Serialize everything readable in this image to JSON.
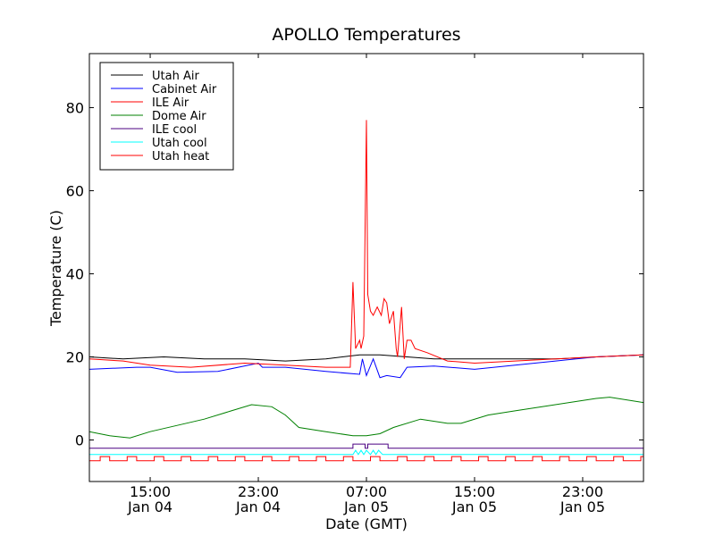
{
  "chart_data": {
    "type": "line",
    "title": "APOLLO Temperatures",
    "xlabel": "Date (GMT)",
    "ylabel": "Temperature (C)",
    "xlim_hours": [
      10.5,
      51.5
    ],
    "ylim": [
      -10,
      93
    ],
    "x_ticks": [
      {
        "h": 15,
        "line1": "15:00",
        "line2": "Jan 04"
      },
      {
        "h": 23,
        "line1": "23:00",
        "line2": "Jan 04"
      },
      {
        "h": 31,
        "line1": "07:00",
        "line2": "Jan 05"
      },
      {
        "h": 39,
        "line1": "15:00",
        "line2": "Jan 05"
      },
      {
        "h": 47,
        "line1": "23:00",
        "line2": "Jan 05"
      }
    ],
    "y_ticks": [
      0,
      20,
      40,
      60,
      80
    ],
    "legend": [
      {
        "name": "Utah Air",
        "color": "#000000"
      },
      {
        "name": "Cabinet Air",
        "color": "#0000ff"
      },
      {
        "name": "ILE Air",
        "color": "#ff0000"
      },
      {
        "name": "Dome Air",
        "color": "#008000"
      },
      {
        "name": "ILE cool",
        "color": "#4b0082"
      },
      {
        "name": "Utah cool",
        "color": "#00ffff"
      },
      {
        "name": "Utah heat",
        "color": "#ff0000"
      }
    ],
    "series": [
      {
        "name": "Utah Air",
        "color": "#000000",
        "x": [
          10.5,
          13,
          16,
          19,
          22,
          25,
          28,
          30.5,
          31,
          32,
          34,
          36,
          39,
          42,
          45,
          48,
          51.5
        ],
        "y": [
          20,
          19.5,
          20,
          19.5,
          19.5,
          19,
          19.5,
          20.5,
          20.5,
          20.5,
          20,
          19.5,
          19.5,
          19.5,
          19.5,
          20,
          20.5
        ]
      },
      {
        "name": "Cabinet Air",
        "color": "#0000ff",
        "x": [
          10.5,
          14,
          15,
          17,
          20,
          23,
          23.3,
          25,
          28,
          30.5,
          30.7,
          31,
          31.5,
          32,
          32.5,
          33.5,
          34,
          36,
          39,
          42,
          45,
          48,
          51.5
        ],
        "y": [
          17,
          17.5,
          17.5,
          16.3,
          16.5,
          18.5,
          17.5,
          17.5,
          16.5,
          15.8,
          19.5,
          15.5,
          19.5,
          15,
          15.5,
          15,
          17.5,
          17.8,
          17,
          18,
          19,
          20,
          20.5
        ]
      },
      {
        "name": "ILE Air",
        "color": "#ff0000",
        "x": [
          10.5,
          13,
          15,
          18,
          22,
          25,
          28,
          29.8,
          30,
          30.2,
          30.5,
          30.6,
          30.8,
          31,
          31.1,
          31.3,
          31.5,
          31.8,
          32.1,
          32.3,
          32.5,
          32.7,
          33,
          33.2,
          33.3,
          33.6,
          33.8,
          34,
          34.3,
          34.6,
          35.5,
          37,
          39,
          42,
          45,
          48,
          51.5
        ],
        "y": [
          19.5,
          19,
          18,
          17.5,
          18.5,
          18,
          17.5,
          17.5,
          38,
          22,
          24,
          22,
          25,
          77,
          35,
          31,
          30,
          32,
          30,
          34,
          33,
          28,
          31,
          22,
          20,
          32,
          19.5,
          24,
          24,
          22,
          21,
          19,
          18.5,
          19,
          19.5,
          20,
          20.5
        ]
      },
      {
        "name": "Dome Air",
        "color": "#008000",
        "x": [
          10.5,
          12,
          13.5,
          15,
          17,
          19,
          21,
          22.5,
          24,
          25,
          26,
          28,
          30,
          31,
          32,
          33,
          35,
          37,
          38,
          40,
          42,
          44,
          46,
          48,
          49,
          51.5
        ],
        "y": [
          2,
          1,
          0.5,
          2,
          3.5,
          5,
          7,
          8.5,
          8,
          6,
          3,
          2,
          1,
          1,
          1.5,
          3,
          5,
          4,
          4,
          6,
          7,
          8,
          9,
          10,
          10.3,
          9
        ]
      },
      {
        "name": "ILE cool",
        "color": "#4b0082",
        "x": [
          10.5,
          30,
          30,
          30.9,
          30.9,
          31.1,
          31.1,
          32.6,
          32.6,
          32.9,
          32.9,
          51.5
        ],
        "y": [
          -2,
          -2,
          -1,
          -1,
          -2,
          -2,
          -1,
          -1,
          -2,
          -2,
          -2,
          -2
        ]
      },
      {
        "name": "Utah cool",
        "color": "#00ffff",
        "x": [
          10.5,
          30,
          30.2,
          30.4,
          30.6,
          30.8,
          31,
          31.3,
          31.5,
          31.7,
          31.9,
          32.2,
          32.6,
          51.5
        ],
        "y": [
          -3.5,
          -3.5,
          -2.5,
          -3.5,
          -2.5,
          -3.5,
          -2.5,
          -3.5,
          -2.5,
          -3.5,
          -2.5,
          -3.5,
          -3.5,
          -3.5
        ]
      },
      {
        "name": "Utah heat",
        "color": "#ff0000",
        "low": -5,
        "high": -4,
        "period": 2,
        "on_width": 0.7,
        "start": 11.3,
        "end": 51.5
      }
    ]
  }
}
